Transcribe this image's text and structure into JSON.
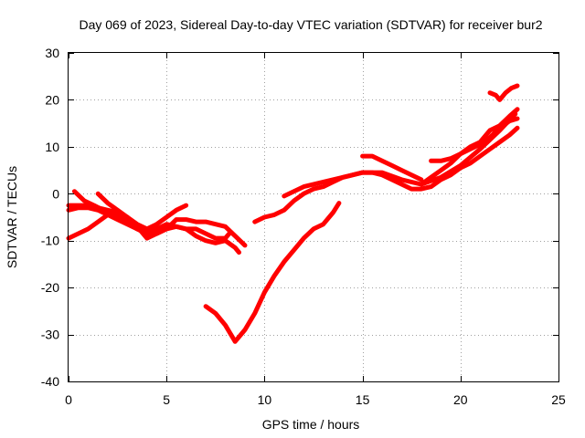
{
  "chart_data": {
    "type": "line",
    "title": "Day 069 of 2023, Sidereal Day-to-day VTEC variation (SDTVAR) for receiver bur2",
    "xlabel": "GPS time / hours",
    "ylabel": "SDTVAR / TECUs",
    "xlim": [
      0,
      25
    ],
    "ylim": [
      -40,
      30
    ],
    "x_ticks": [
      0,
      5,
      10,
      15,
      20,
      25
    ],
    "y_ticks": [
      -40,
      -30,
      -20,
      -10,
      0,
      10,
      20,
      30
    ],
    "x_tick_labels": [
      "0",
      "5",
      "10",
      "15",
      "20",
      "25"
    ],
    "y_tick_labels": [
      "-40",
      "-30",
      "-20",
      "-10",
      "0",
      "10",
      "20",
      "30"
    ],
    "grid": true,
    "color": "#ff0000",
    "series": [
      {
        "points": [
          [
            0,
            -9.5
          ],
          [
            0.5,
            -8.5
          ],
          [
            1.0,
            -7.5
          ],
          [
            1.5,
            -6.0
          ],
          [
            2.0,
            -4.5
          ],
          [
            2.5,
            -4.0
          ],
          [
            3.0,
            -5.0
          ],
          [
            3.5,
            -6.5
          ],
          [
            4.0,
            -7.5
          ],
          [
            4.5,
            -6.5
          ],
          [
            5.0,
            -5.0
          ],
          [
            5.5,
            -3.5
          ],
          [
            6.0,
            -2.5
          ]
        ]
      },
      {
        "points": [
          [
            0,
            -3.5
          ],
          [
            0.5,
            -3.0
          ],
          [
            1.0,
            -3.0
          ],
          [
            1.5,
            -3.5
          ],
          [
            2.0,
            -4.5
          ],
          [
            2.5,
            -5.5
          ],
          [
            3.0,
            -6.5
          ],
          [
            3.5,
            -7.5
          ],
          [
            4.0,
            -8.0
          ],
          [
            4.5,
            -7.5
          ],
          [
            5.0,
            -6.5
          ],
          [
            5.5,
            -7.0
          ],
          [
            6.0,
            -7.5
          ],
          [
            6.5,
            -7.5
          ],
          [
            7.0,
            -8.5
          ],
          [
            7.5,
            -9.5
          ],
          [
            8.0,
            -9.5
          ],
          [
            8.2,
            -8.5
          ]
        ]
      },
      {
        "points": [
          [
            0,
            -2.5
          ],
          [
            0.5,
            -2.5
          ],
          [
            1.0,
            -2.5
          ],
          [
            1.5,
            -3.0
          ],
          [
            2.0,
            -3.5
          ],
          [
            2.5,
            -4.0
          ],
          [
            3.0,
            -5.5
          ],
          [
            3.5,
            -7.0
          ],
          [
            4.0,
            -9.5
          ],
          [
            4.5,
            -8.5
          ],
          [
            5.0,
            -7.5
          ],
          [
            5.5,
            -5.5
          ],
          [
            6.0,
            -5.5
          ],
          [
            6.5,
            -6.0
          ],
          [
            7.0,
            -6.0
          ],
          [
            7.5,
            -6.5
          ],
          [
            8.0,
            -7.0
          ],
          [
            8.5,
            -9.0
          ],
          [
            9.0,
            -11.0
          ]
        ]
      },
      {
        "points": [
          [
            0.3,
            0.5
          ],
          [
            0.8,
            -1.5
          ],
          [
            1.3,
            -2.5
          ],
          [
            2.0,
            -4.0
          ],
          [
            2.8,
            -5.5
          ],
          [
            3.5,
            -7.5
          ],
          [
            4.2,
            -9.0
          ]
        ]
      },
      {
        "points": [
          [
            1.5,
            0.0
          ],
          [
            2.0,
            -2.0
          ],
          [
            2.5,
            -3.5
          ],
          [
            3.0,
            -5.0
          ],
          [
            3.5,
            -7.0
          ],
          [
            4.0,
            -8.0
          ],
          [
            4.5,
            -8.5
          ],
          [
            5.0,
            -7.5
          ],
          [
            5.5,
            -7.0
          ],
          [
            6.0,
            -7.5
          ],
          [
            6.5,
            -9.0
          ],
          [
            7.0,
            -10.0
          ],
          [
            7.5,
            -10.5
          ],
          [
            8.0,
            -10.0
          ],
          [
            8.5,
            -11.5
          ],
          [
            8.7,
            -12.5
          ]
        ]
      },
      {
        "points": [
          [
            7.0,
            -24.0
          ],
          [
            7.5,
            -25.5
          ],
          [
            8.0,
            -28.0
          ],
          [
            8.5,
            -31.5
          ],
          [
            9.0,
            -29.0
          ],
          [
            9.5,
            -25.5
          ],
          [
            10.0,
            -21.0
          ],
          [
            10.5,
            -17.5
          ],
          [
            11.0,
            -14.5
          ],
          [
            11.5,
            -12.0
          ],
          [
            12.0,
            -9.5
          ],
          [
            12.5,
            -7.5
          ],
          [
            13.0,
            -6.5
          ],
          [
            13.5,
            -4.0
          ],
          [
            13.8,
            -2.0
          ]
        ]
      },
      {
        "points": [
          [
            9.5,
            -6.0
          ],
          [
            10.0,
            -5.0
          ],
          [
            10.5,
            -4.5
          ],
          [
            11.0,
            -3.5
          ],
          [
            11.5,
            -1.5
          ],
          [
            12.0,
            0.0
          ],
          [
            12.5,
            1.0
          ],
          [
            13.0,
            1.5
          ],
          [
            13.5,
            2.5
          ],
          [
            14.0,
            3.5
          ],
          [
            14.5,
            4.0
          ],
          [
            15.0,
            4.5
          ],
          [
            15.5,
            4.5
          ],
          [
            16.0,
            4.0
          ],
          [
            16.5,
            3.0
          ],
          [
            17.0,
            2.0
          ],
          [
            17.5,
            1.0
          ],
          [
            18.0,
            1.0
          ],
          [
            18.5,
            1.5
          ],
          [
            19.0,
            3.0
          ],
          [
            19.5,
            4.0
          ],
          [
            20.0,
            5.5
          ],
          [
            20.5,
            6.5
          ],
          [
            21.0,
            8.0
          ],
          [
            21.5,
            9.5
          ],
          [
            22.0,
            11.0
          ],
          [
            22.5,
            12.5
          ],
          [
            22.9,
            14.0
          ]
        ]
      },
      {
        "points": [
          [
            11.0,
            -0.5
          ],
          [
            12.0,
            1.5
          ],
          [
            13.0,
            2.5
          ],
          [
            14.0,
            3.5
          ],
          [
            15.0,
            4.5
          ],
          [
            16.0,
            4.5
          ],
          [
            17.0,
            3.0
          ],
          [
            18.0,
            2.0
          ],
          [
            19.0,
            3.5
          ],
          [
            20.0,
            6.0
          ],
          [
            21.0,
            9.5
          ],
          [
            22.0,
            13.5
          ],
          [
            22.8,
            17.0
          ]
        ]
      },
      {
        "points": [
          [
            15.0,
            8.0
          ],
          [
            15.5,
            8.0
          ],
          [
            16.0,
            7.0
          ],
          [
            16.5,
            6.0
          ],
          [
            17.0,
            5.0
          ],
          [
            17.5,
            4.0
          ],
          [
            18.0,
            3.0
          ]
        ]
      },
      {
        "points": [
          [
            18.0,
            2.0
          ],
          [
            18.5,
            3.5
          ],
          [
            19.0,
            5.0
          ],
          [
            19.5,
            6.5
          ],
          [
            20.0,
            8.5
          ],
          [
            20.5,
            10.0
          ],
          [
            21.0,
            11.0
          ],
          [
            21.5,
            13.5
          ],
          [
            22.0,
            14.5
          ],
          [
            22.5,
            16.5
          ],
          [
            22.9,
            18.0
          ]
        ]
      },
      {
        "points": [
          [
            18.5,
            7.0
          ],
          [
            19.0,
            7.0
          ],
          [
            19.5,
            7.5
          ],
          [
            20.0,
            8.5
          ],
          [
            20.5,
            9.5
          ],
          [
            21.0,
            10.5
          ],
          [
            21.5,
            12.0
          ],
          [
            22.0,
            14.0
          ],
          [
            22.5,
            15.5
          ],
          [
            22.9,
            16.0
          ]
        ]
      },
      {
        "points": [
          [
            21.5,
            21.5
          ],
          [
            21.8,
            21.0
          ],
          [
            22.0,
            20.0
          ],
          [
            22.3,
            21.5
          ],
          [
            22.6,
            22.5
          ],
          [
            22.9,
            23.0
          ]
        ]
      }
    ]
  }
}
